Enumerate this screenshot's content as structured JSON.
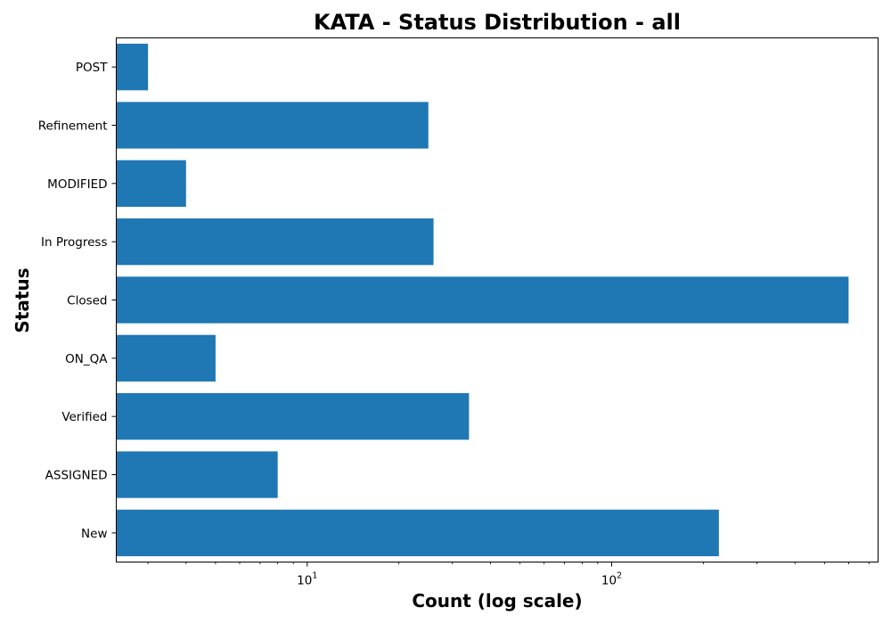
{
  "chart_data": {
    "type": "bar",
    "orientation": "horizontal",
    "title": "KATA - Status Distribution - all",
    "xlabel": "Count (log scale)",
    "ylabel": "Status",
    "x_scale": "log",
    "xlim": [
      2.36,
      750
    ],
    "x_major_ticks": [
      10,
      100
    ],
    "x_tick_labels": [
      {
        "base": "10",
        "exp": "1"
      },
      {
        "base": "10",
        "exp": "2"
      }
    ],
    "categories": [
      "New",
      "ASSIGNED",
      "Verified",
      "ON_QA",
      "Closed",
      "In Progress",
      "MODIFIED",
      "Refinement",
      "POST"
    ],
    "values": [
      225,
      8,
      34,
      5,
      600,
      26,
      4,
      25,
      3
    ],
    "bar_color": "#1f77b4",
    "grid": false,
    "legend": false
  }
}
